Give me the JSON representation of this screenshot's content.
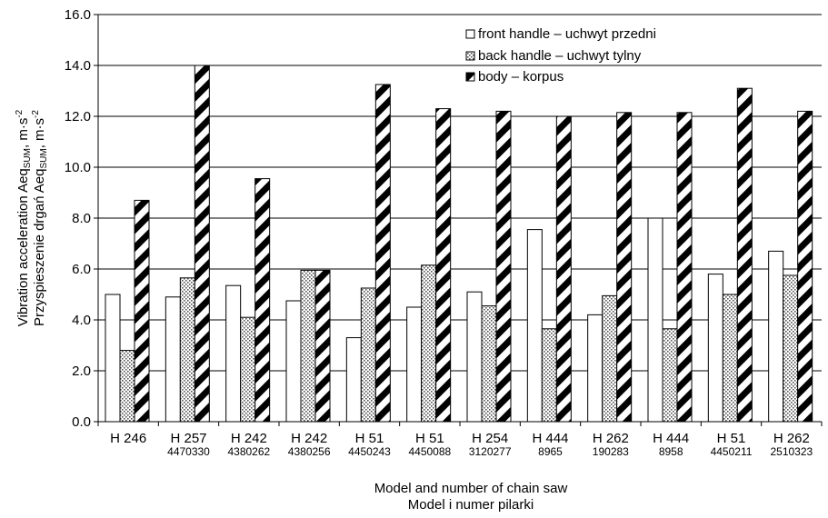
{
  "chart_data": {
    "type": "bar",
    "categories": [
      {
        "model": "H 246",
        "number": ""
      },
      {
        "model": "H 257",
        "number": "4470330"
      },
      {
        "model": "H 242",
        "number": "4380262"
      },
      {
        "model": "H 242",
        "number": "4380256"
      },
      {
        "model": "H 51",
        "number": "4450243"
      },
      {
        "model": "H 51",
        "number": "4450088"
      },
      {
        "model": "H 254",
        "number": "3120277"
      },
      {
        "model": "H 444",
        "number": "8965"
      },
      {
        "model": "H 262",
        "number": "190283"
      },
      {
        "model": "H 444",
        "number": "8958"
      },
      {
        "model": "H 51",
        "number": "4450211"
      },
      {
        "model": "H 262",
        "number": "2510323"
      }
    ],
    "series": [
      {
        "name": "front handle – uchwyt przedni",
        "pattern": "white",
        "values": [
          5.0,
          4.9,
          5.35,
          4.75,
          3.3,
          4.5,
          5.1,
          7.55,
          4.2,
          8.0,
          5.8,
          6.7
        ]
      },
      {
        "name": "back handle – uchwyt tylny",
        "pattern": "dots",
        "values": [
          2.8,
          5.65,
          4.1,
          5.95,
          5.25,
          6.15,
          4.55,
          3.65,
          4.95,
          3.65,
          5.0,
          5.75
        ]
      },
      {
        "name": "body – korpus",
        "pattern": "diagonal",
        "values": [
          8.7,
          14.0,
          9.55,
          5.95,
          13.25,
          12.3,
          12.2,
          12.0,
          12.15,
          12.15,
          13.1,
          12.2
        ]
      }
    ],
    "ylim": [
      0,
      16
    ],
    "yticks": [
      "0.0",
      "2.0",
      "4.0",
      "6.0",
      "8.0",
      "10.0",
      "12.0",
      "14.0",
      "16.0"
    ],
    "ylabel_line1": "Vibration acceleration Aeq",
    "ylabel_line2": "Przyspieszenie drgań Aeq",
    "ylabel_sub": "SUM",
    "ylabel_unit": ", m·s",
    "ylabel_sup": "-2",
    "xlabel_line1": "Model and number of chain saw",
    "xlabel_line2": "Model i numer pilarki",
    "grid": true,
    "legend_position": "top-right"
  }
}
